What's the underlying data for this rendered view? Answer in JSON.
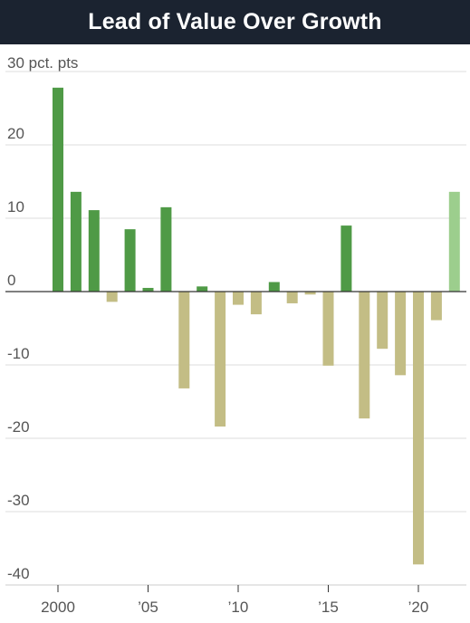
{
  "title": "Lead of Value Over Growth",
  "chart_data": {
    "type": "bar",
    "unit_label": "30 pct. pts",
    "y_ticks": [
      20,
      10,
      0,
      -10,
      -20,
      -30,
      -40
    ],
    "y_tick_labels": [
      "20",
      "10",
      "0",
      "-10",
      "-20",
      "-30",
      "-40"
    ],
    "ylim": [
      -40,
      30
    ],
    "x_tick_labels": [
      {
        "year": 2000,
        "label": "2000"
      },
      {
        "year": 2005,
        "label": "’05"
      },
      {
        "year": 2010,
        "label": "’10"
      },
      {
        "year": 2015,
        "label": "’15"
      },
      {
        "year": 2020,
        "label": "’20"
      }
    ],
    "x": [
      2000,
      2001,
      2002,
      2003,
      2004,
      2005,
      2006,
      2007,
      2008,
      2009,
      2010,
      2011,
      2012,
      2013,
      2014,
      2015,
      2016,
      2017,
      2018,
      2019,
      2020,
      2021,
      2022
    ],
    "values": [
      27.8,
      13.6,
      11.1,
      -1.4,
      8.5,
      0.5,
      11.5,
      -13.2,
      0.7,
      -18.4,
      -1.8,
      -3.1,
      1.3,
      -1.6,
      -0.4,
      -10.1,
      9.0,
      -17.3,
      -7.8,
      -11.4,
      -37.2,
      -3.9,
      13.6
    ],
    "grid": true,
    "colors": {
      "positive": "#4f9a46",
      "negative": "#c3bd85",
      "year_to_date": "#9cce8d",
      "gridline": "#dcdcdc",
      "zero_line": "#333333",
      "tick_label": "#555555"
    }
  }
}
